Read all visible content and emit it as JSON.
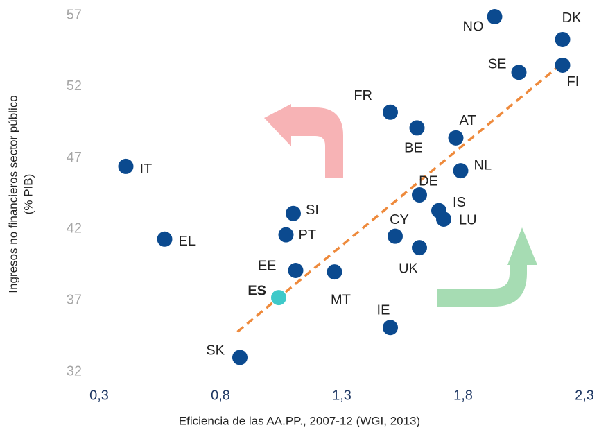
{
  "chart_data": {
    "type": "scatter",
    "x_label": "Eficiencia de las AA.PP., 2007-12 (WGI, 2013)",
    "y_label": [
      "Ingresos no financieros sector público",
      "(% PIB)"
    ],
    "labels": [
      "NO",
      "DK",
      "SE",
      "FI",
      "FR",
      "BE",
      "AT",
      "NL",
      "IT",
      "DE",
      "IS",
      "LU",
      "SI",
      "PT",
      "EL",
      "CY",
      "UK",
      "EE",
      "MT",
      "ES",
      "IE",
      "SK"
    ],
    "x": [
      1.93,
      2.21,
      2.03,
      2.21,
      1.5,
      1.61,
      1.77,
      1.79,
      0.41,
      1.62,
      1.7,
      1.72,
      1.1,
      1.07,
      0.57,
      1.52,
      1.62,
      1.11,
      1.27,
      1.04,
      1.5,
      0.88
    ],
    "values": [
      56.9,
      55.3,
      53.0,
      53.5,
      50.2,
      49.1,
      48.4,
      46.1,
      46.4,
      44.4,
      43.3,
      42.7,
      43.1,
      41.6,
      41.3,
      41.5,
      40.7,
      39.1,
      39.0,
      37.2,
      35.1,
      33.0
    ],
    "color": "#0b4a8f",
    "colors": [
      "#0b4a8f",
      "#0b4a8f",
      "#0b4a8f",
      "#0b4a8f",
      "#0b4a8f",
      "#0b4a8f",
      "#0b4a8f",
      "#0b4a8f",
      "#0b4a8f",
      "#0b4a8f",
      "#0b4a8f",
      "#0b4a8f",
      "#0b4a8f",
      "#0b4a8f",
      "#0b4a8f",
      "#0b4a8f",
      "#0b4a8f",
      "#0b4a8f",
      "#0b4a8f",
      "#3ec9c9",
      "#0b4a8f",
      "#0b4a8f"
    ],
    "trend": {
      "x": [
        0.87,
        2.22
      ],
      "values": [
        34.8,
        53.8
      ],
      "color": "#ee8a3c"
    },
    "xlim": [
      0.3,
      2.3
    ],
    "xticks": [
      {
        "value": 0.3,
        "label": "0,3"
      },
      {
        "value": 0.8,
        "label": "0,8"
      },
      {
        "value": 1.3,
        "label": "1,3"
      },
      {
        "value": 1.8,
        "label": "1,8"
      },
      {
        "value": 2.3,
        "label": "2,3"
      }
    ],
    "ylim": [
      32,
      57
    ],
    "yticks": [
      32,
      37,
      42,
      47,
      52,
      57
    ],
    "grid": false
  }
}
